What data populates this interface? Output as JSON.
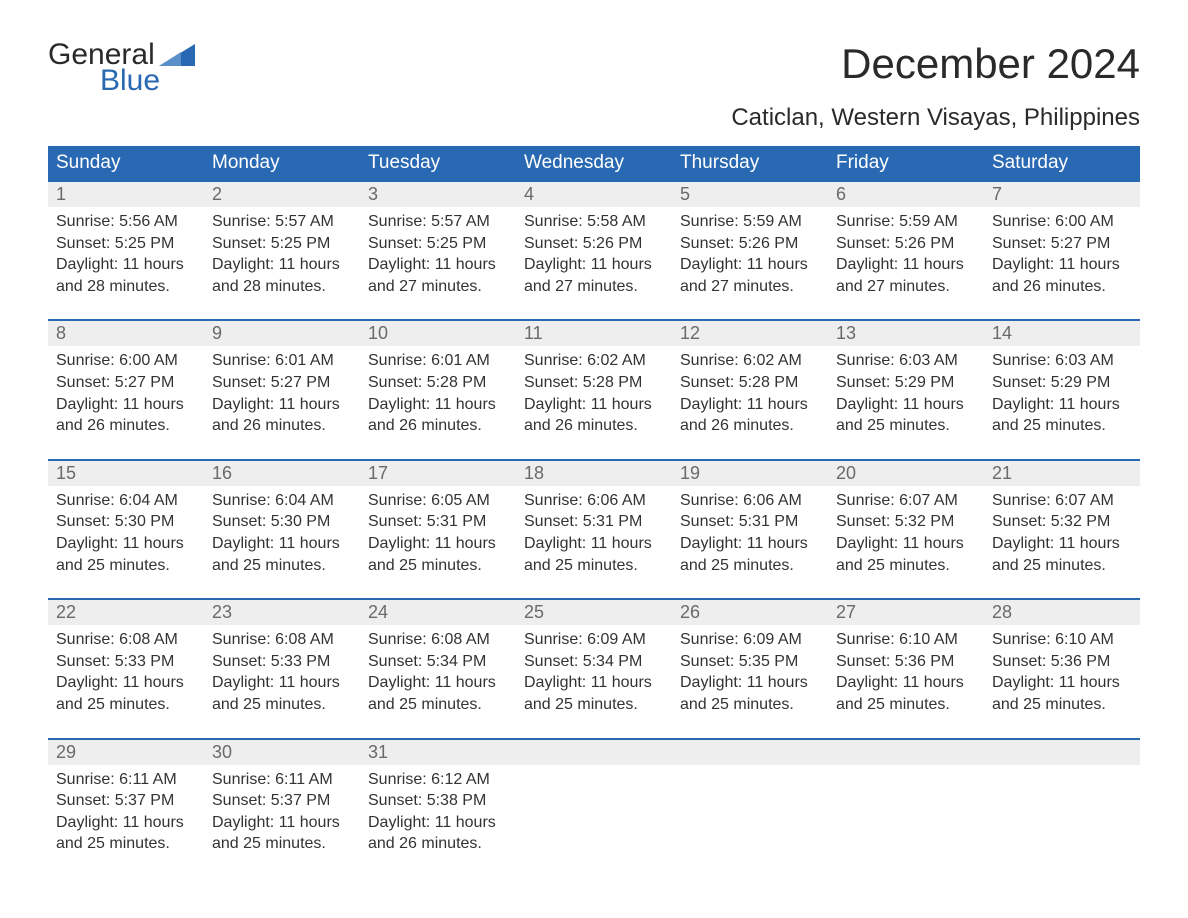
{
  "brand": {
    "part1": "General",
    "part2": "Blue",
    "flag_color": "#2968b2"
  },
  "title": "December 2024",
  "location": "Caticlan, Western Visayas, Philippines",
  "colors": {
    "header_bg": "#2968b2",
    "header_text": "#ffffff",
    "daynum_bg": "#eeeeee",
    "daynum_text": "#6a6a6a",
    "body_text": "#333333",
    "border": "#2968b2",
    "background": "#ffffff"
  },
  "fonts": {
    "title_size": 42,
    "location_size": 24,
    "header_size": 19,
    "daynum_size": 18,
    "cell_size": 16
  },
  "day_headers": [
    "Sunday",
    "Monday",
    "Tuesday",
    "Wednesday",
    "Thursday",
    "Friday",
    "Saturday"
  ],
  "weeks": [
    {
      "days": [
        {
          "num": "1",
          "sunrise": "Sunrise: 5:56 AM",
          "sunset": "Sunset: 5:25 PM",
          "daylight": "Daylight: 11 hours and 28 minutes."
        },
        {
          "num": "2",
          "sunrise": "Sunrise: 5:57 AM",
          "sunset": "Sunset: 5:25 PM",
          "daylight": "Daylight: 11 hours and 28 minutes."
        },
        {
          "num": "3",
          "sunrise": "Sunrise: 5:57 AM",
          "sunset": "Sunset: 5:25 PM",
          "daylight": "Daylight: 11 hours and 27 minutes."
        },
        {
          "num": "4",
          "sunrise": "Sunrise: 5:58 AM",
          "sunset": "Sunset: 5:26 PM",
          "daylight": "Daylight: 11 hours and 27 minutes."
        },
        {
          "num": "5",
          "sunrise": "Sunrise: 5:59 AM",
          "sunset": "Sunset: 5:26 PM",
          "daylight": "Daylight: 11 hours and 27 minutes."
        },
        {
          "num": "6",
          "sunrise": "Sunrise: 5:59 AM",
          "sunset": "Sunset: 5:26 PM",
          "daylight": "Daylight: 11 hours and 27 minutes."
        },
        {
          "num": "7",
          "sunrise": "Sunrise: 6:00 AM",
          "sunset": "Sunset: 5:27 PM",
          "daylight": "Daylight: 11 hours and 26 minutes."
        }
      ]
    },
    {
      "days": [
        {
          "num": "8",
          "sunrise": "Sunrise: 6:00 AM",
          "sunset": "Sunset: 5:27 PM",
          "daylight": "Daylight: 11 hours and 26 minutes."
        },
        {
          "num": "9",
          "sunrise": "Sunrise: 6:01 AM",
          "sunset": "Sunset: 5:27 PM",
          "daylight": "Daylight: 11 hours and 26 minutes."
        },
        {
          "num": "10",
          "sunrise": "Sunrise: 6:01 AM",
          "sunset": "Sunset: 5:28 PM",
          "daylight": "Daylight: 11 hours and 26 minutes."
        },
        {
          "num": "11",
          "sunrise": "Sunrise: 6:02 AM",
          "sunset": "Sunset: 5:28 PM",
          "daylight": "Daylight: 11 hours and 26 minutes."
        },
        {
          "num": "12",
          "sunrise": "Sunrise: 6:02 AM",
          "sunset": "Sunset: 5:28 PM",
          "daylight": "Daylight: 11 hours and 26 minutes."
        },
        {
          "num": "13",
          "sunrise": "Sunrise: 6:03 AM",
          "sunset": "Sunset: 5:29 PM",
          "daylight": "Daylight: 11 hours and 25 minutes."
        },
        {
          "num": "14",
          "sunrise": "Sunrise: 6:03 AM",
          "sunset": "Sunset: 5:29 PM",
          "daylight": "Daylight: 11 hours and 25 minutes."
        }
      ]
    },
    {
      "days": [
        {
          "num": "15",
          "sunrise": "Sunrise: 6:04 AM",
          "sunset": "Sunset: 5:30 PM",
          "daylight": "Daylight: 11 hours and 25 minutes."
        },
        {
          "num": "16",
          "sunrise": "Sunrise: 6:04 AM",
          "sunset": "Sunset: 5:30 PM",
          "daylight": "Daylight: 11 hours and 25 minutes."
        },
        {
          "num": "17",
          "sunrise": "Sunrise: 6:05 AM",
          "sunset": "Sunset: 5:31 PM",
          "daylight": "Daylight: 11 hours and 25 minutes."
        },
        {
          "num": "18",
          "sunrise": "Sunrise: 6:06 AM",
          "sunset": "Sunset: 5:31 PM",
          "daylight": "Daylight: 11 hours and 25 minutes."
        },
        {
          "num": "19",
          "sunrise": "Sunrise: 6:06 AM",
          "sunset": "Sunset: 5:31 PM",
          "daylight": "Daylight: 11 hours and 25 minutes."
        },
        {
          "num": "20",
          "sunrise": "Sunrise: 6:07 AM",
          "sunset": "Sunset: 5:32 PM",
          "daylight": "Daylight: 11 hours and 25 minutes."
        },
        {
          "num": "21",
          "sunrise": "Sunrise: 6:07 AM",
          "sunset": "Sunset: 5:32 PM",
          "daylight": "Daylight: 11 hours and 25 minutes."
        }
      ]
    },
    {
      "days": [
        {
          "num": "22",
          "sunrise": "Sunrise: 6:08 AM",
          "sunset": "Sunset: 5:33 PM",
          "daylight": "Daylight: 11 hours and 25 minutes."
        },
        {
          "num": "23",
          "sunrise": "Sunrise: 6:08 AM",
          "sunset": "Sunset: 5:33 PM",
          "daylight": "Daylight: 11 hours and 25 minutes."
        },
        {
          "num": "24",
          "sunrise": "Sunrise: 6:08 AM",
          "sunset": "Sunset: 5:34 PM",
          "daylight": "Daylight: 11 hours and 25 minutes."
        },
        {
          "num": "25",
          "sunrise": "Sunrise: 6:09 AM",
          "sunset": "Sunset: 5:34 PM",
          "daylight": "Daylight: 11 hours and 25 minutes."
        },
        {
          "num": "26",
          "sunrise": "Sunrise: 6:09 AM",
          "sunset": "Sunset: 5:35 PM",
          "daylight": "Daylight: 11 hours and 25 minutes."
        },
        {
          "num": "27",
          "sunrise": "Sunrise: 6:10 AM",
          "sunset": "Sunset: 5:36 PM",
          "daylight": "Daylight: 11 hours and 25 minutes."
        },
        {
          "num": "28",
          "sunrise": "Sunrise: 6:10 AM",
          "sunset": "Sunset: 5:36 PM",
          "daylight": "Daylight: 11 hours and 25 minutes."
        }
      ]
    },
    {
      "days": [
        {
          "num": "29",
          "sunrise": "Sunrise: 6:11 AM",
          "sunset": "Sunset: 5:37 PM",
          "daylight": "Daylight: 11 hours and 25 minutes."
        },
        {
          "num": "30",
          "sunrise": "Sunrise: 6:11 AM",
          "sunset": "Sunset: 5:37 PM",
          "daylight": "Daylight: 11 hours and 25 minutes."
        },
        {
          "num": "31",
          "sunrise": "Sunrise: 6:12 AM",
          "sunset": "Sunset: 5:38 PM",
          "daylight": "Daylight: 11 hours and 26 minutes."
        },
        {
          "num": "",
          "sunrise": "",
          "sunset": "",
          "daylight": ""
        },
        {
          "num": "",
          "sunrise": "",
          "sunset": "",
          "daylight": ""
        },
        {
          "num": "",
          "sunrise": "",
          "sunset": "",
          "daylight": ""
        },
        {
          "num": "",
          "sunrise": "",
          "sunset": "",
          "daylight": ""
        }
      ]
    }
  ]
}
